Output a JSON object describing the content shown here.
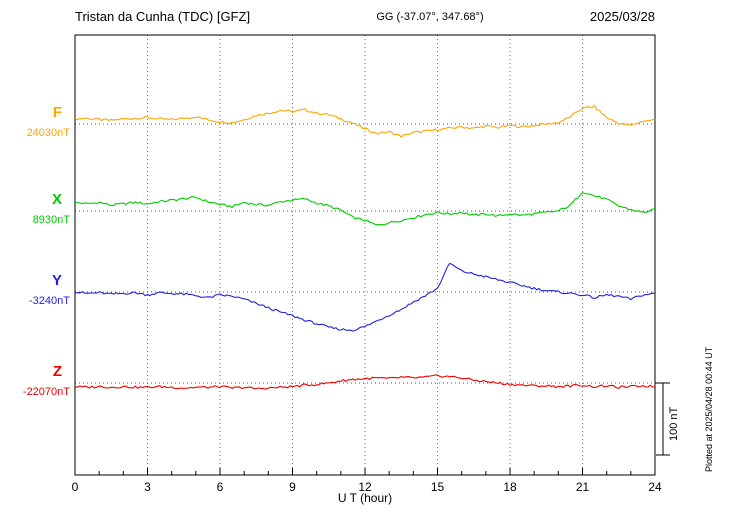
{
  "header": {
    "title": "Tristan da Cunha (TDC)  [GFZ]",
    "coords": "GG (-37.07°, 347.68°)",
    "date": "2025/03/28"
  },
  "xaxis": {
    "label": "U T (hour)",
    "range": [
      0,
      24
    ],
    "ticks": [
      0,
      3,
      6,
      9,
      12,
      15,
      18,
      21,
      24
    ],
    "minor_tick_every_hours": 1
  },
  "scale_bar": {
    "label": "100 nT",
    "nT": 100
  },
  "side_note": "Plotted at 2025/04/28 00:44 UT",
  "chart_data": {
    "type": "line",
    "title": "Tristan da Cunha (TDC) magnetogram 2025/03/28",
    "xlabel": "U T (hour)",
    "x_range_hours": [
      0,
      24
    ],
    "x_step_hours": 0.5,
    "grid": {
      "vertical_dotted_every_hours": 3,
      "horizontal_dotted_at_baselines": true
    },
    "legend_position": "left-of-traces",
    "series": [
      {
        "name": "F",
        "color": "#ffa500",
        "baseline_label": "24030nT",
        "baseline_nT": 24030,
        "offsets_nT": [
          7,
          8,
          6,
          5,
          7,
          8,
          9,
          7,
          6,
          8,
          10,
          6,
          3,
          2,
          6,
          12,
          15,
          19,
          17,
          20,
          15,
          13,
          7,
          1,
          -7,
          -13,
          -11,
          -17,
          -12,
          -10,
          -8,
          -6,
          -4,
          -6,
          -3,
          -5,
          -2,
          -4,
          -2,
          0,
          2,
          10,
          22,
          24,
          9,
          1,
          -2,
          4,
          6
        ]
      },
      {
        "name": "X",
        "color": "#00cc00",
        "baseline_label": "8930nT",
        "baseline_nT": 8930,
        "offsets_nT": [
          12,
          10,
          12,
          8,
          10,
          12,
          10,
          13,
          15,
          17,
          19,
          13,
          9,
          6,
          12,
          9,
          8,
          13,
          15,
          17,
          11,
          7,
          1,
          -9,
          -13,
          -20,
          -16,
          -13,
          -9,
          -5,
          -2,
          -4,
          -2,
          -6,
          -4,
          -7,
          -4,
          -6,
          -4,
          -2,
          0,
          8,
          27,
          21,
          16,
          7,
          2,
          -2,
          2
        ]
      },
      {
        "name": "Y",
        "color": "#2222dd",
        "baseline_label": "-3240nT",
        "baseline_nT": -3240,
        "offsets_nT": [
          0,
          -2,
          -1,
          -3,
          -2,
          -1,
          -4,
          -1,
          -2,
          -3,
          -5,
          -8,
          -4,
          -6,
          -10,
          -16,
          -22,
          -28,
          -33,
          -39,
          -44,
          -49,
          -52,
          -53,
          -48,
          -40,
          -32,
          -24,
          -14,
          -5,
          5,
          40,
          29,
          25,
          21,
          17,
          13,
          9,
          5,
          2,
          0,
          -2,
          -4,
          -8,
          -4,
          -6,
          -10,
          -4,
          -2
        ]
      },
      {
        "name": "Z",
        "color": "#ee0000",
        "baseline_label": "-22070nT",
        "baseline_nT": -22070,
        "offsets_nT": [
          -5,
          -6,
          -5,
          -6,
          -5,
          -6,
          -6,
          -5,
          -6,
          -7,
          -6,
          -6,
          -5,
          -7,
          -6,
          -8,
          -7,
          -6,
          -5,
          -3,
          -2,
          0,
          3,
          5,
          6,
          7,
          6,
          8,
          7,
          8,
          10,
          9,
          7,
          4,
          2,
          0,
          -2,
          -3,
          -4,
          -4,
          -5,
          -4,
          -3,
          -5,
          -4,
          -6,
          -5,
          -4,
          -5
        ]
      }
    ]
  }
}
